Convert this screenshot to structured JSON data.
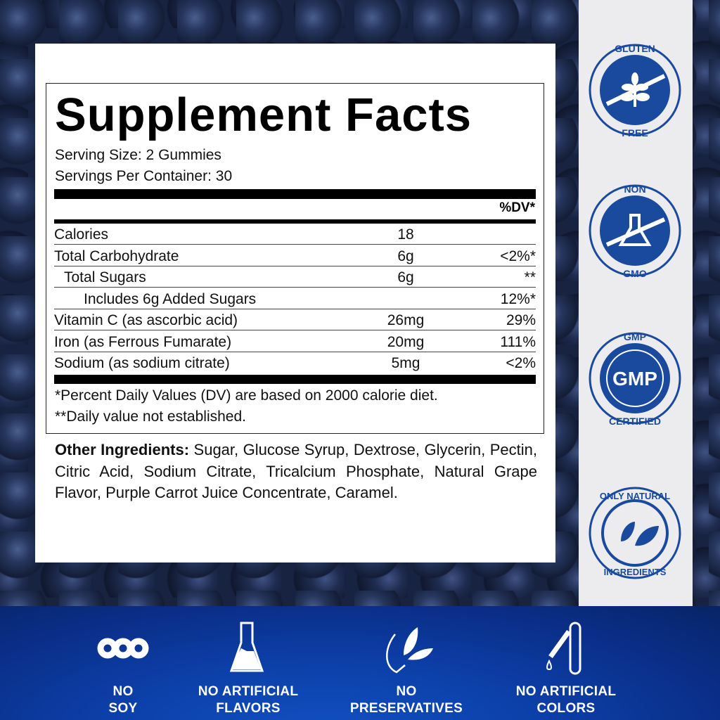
{
  "label": {
    "title": "Supplement Facts",
    "serving_size": "Serving Size: 2 Gummies",
    "servings_per_container": "Servings Per Container: 30",
    "dv_header": "%DV*",
    "rows": [
      {
        "name": "Calories",
        "amount": "18",
        "dv": ""
      },
      {
        "name": "Total Carbohydrate",
        "amount": "6g",
        "dv": "<2%*"
      },
      {
        "name": "Total Sugars",
        "amount": "6g",
        "dv": "**"
      },
      {
        "name": "Includes 6g Added Sugars",
        "amount": "",
        "dv": "12%*"
      },
      {
        "name": "Vitamin C (as ascorbic acid)",
        "amount": "26mg",
        "dv": "29%"
      },
      {
        "name": "Iron (as Ferrous Fumarate)",
        "amount": "20mg",
        "dv": "111%"
      },
      {
        "name": "Sodium (as sodium citrate)",
        "amount": "5mg",
        "dv": "<2%"
      }
    ],
    "footnote1": "*Percent Daily Values (DV) are based on 2000 calorie diet.",
    "footnote2": "**Daily value not established.",
    "other_label": "Other Ingredients:",
    "other_text": " Sugar, Glucose Syrup, Dextrose, Glycerin, Pectin, Citric Acid, Sodium Citrate, Tricalcium Phosphate, Natural Grape Flavor, Purple Carrot Juice Concentrate, Caramel."
  },
  "badges": [
    {
      "top": "GLUTEN",
      "bottom": "FREE",
      "icon": "wheat-icon"
    },
    {
      "top": "NON",
      "bottom": "GMO",
      "icon": "flask-icon"
    },
    {
      "top": "GMP",
      "center": "GMP",
      "bottom": "CERTIFIED",
      "icon": "gmp-icon"
    },
    {
      "top": "ONLY NATURAL",
      "bottom": "INGREDIENTS",
      "icon": "leaves-icon"
    }
  ],
  "features": [
    {
      "line1": "NO",
      "line2": "SOY",
      "icon": "soybean-icon"
    },
    {
      "line1": "NO ARTIFICIAL",
      "line2": "FLAVORS",
      "icon": "flask-icon"
    },
    {
      "line1": "NO",
      "line2": "PRESERVATIVES",
      "icon": "leaves-icon"
    },
    {
      "line1": "NO ARTIFICIAL",
      "line2": "COLORS",
      "icon": "dropper-icon"
    }
  ],
  "colors": {
    "brand_blue": "#1a4a9e",
    "band_blue": "#0c3fa8",
    "background": "#172340"
  }
}
